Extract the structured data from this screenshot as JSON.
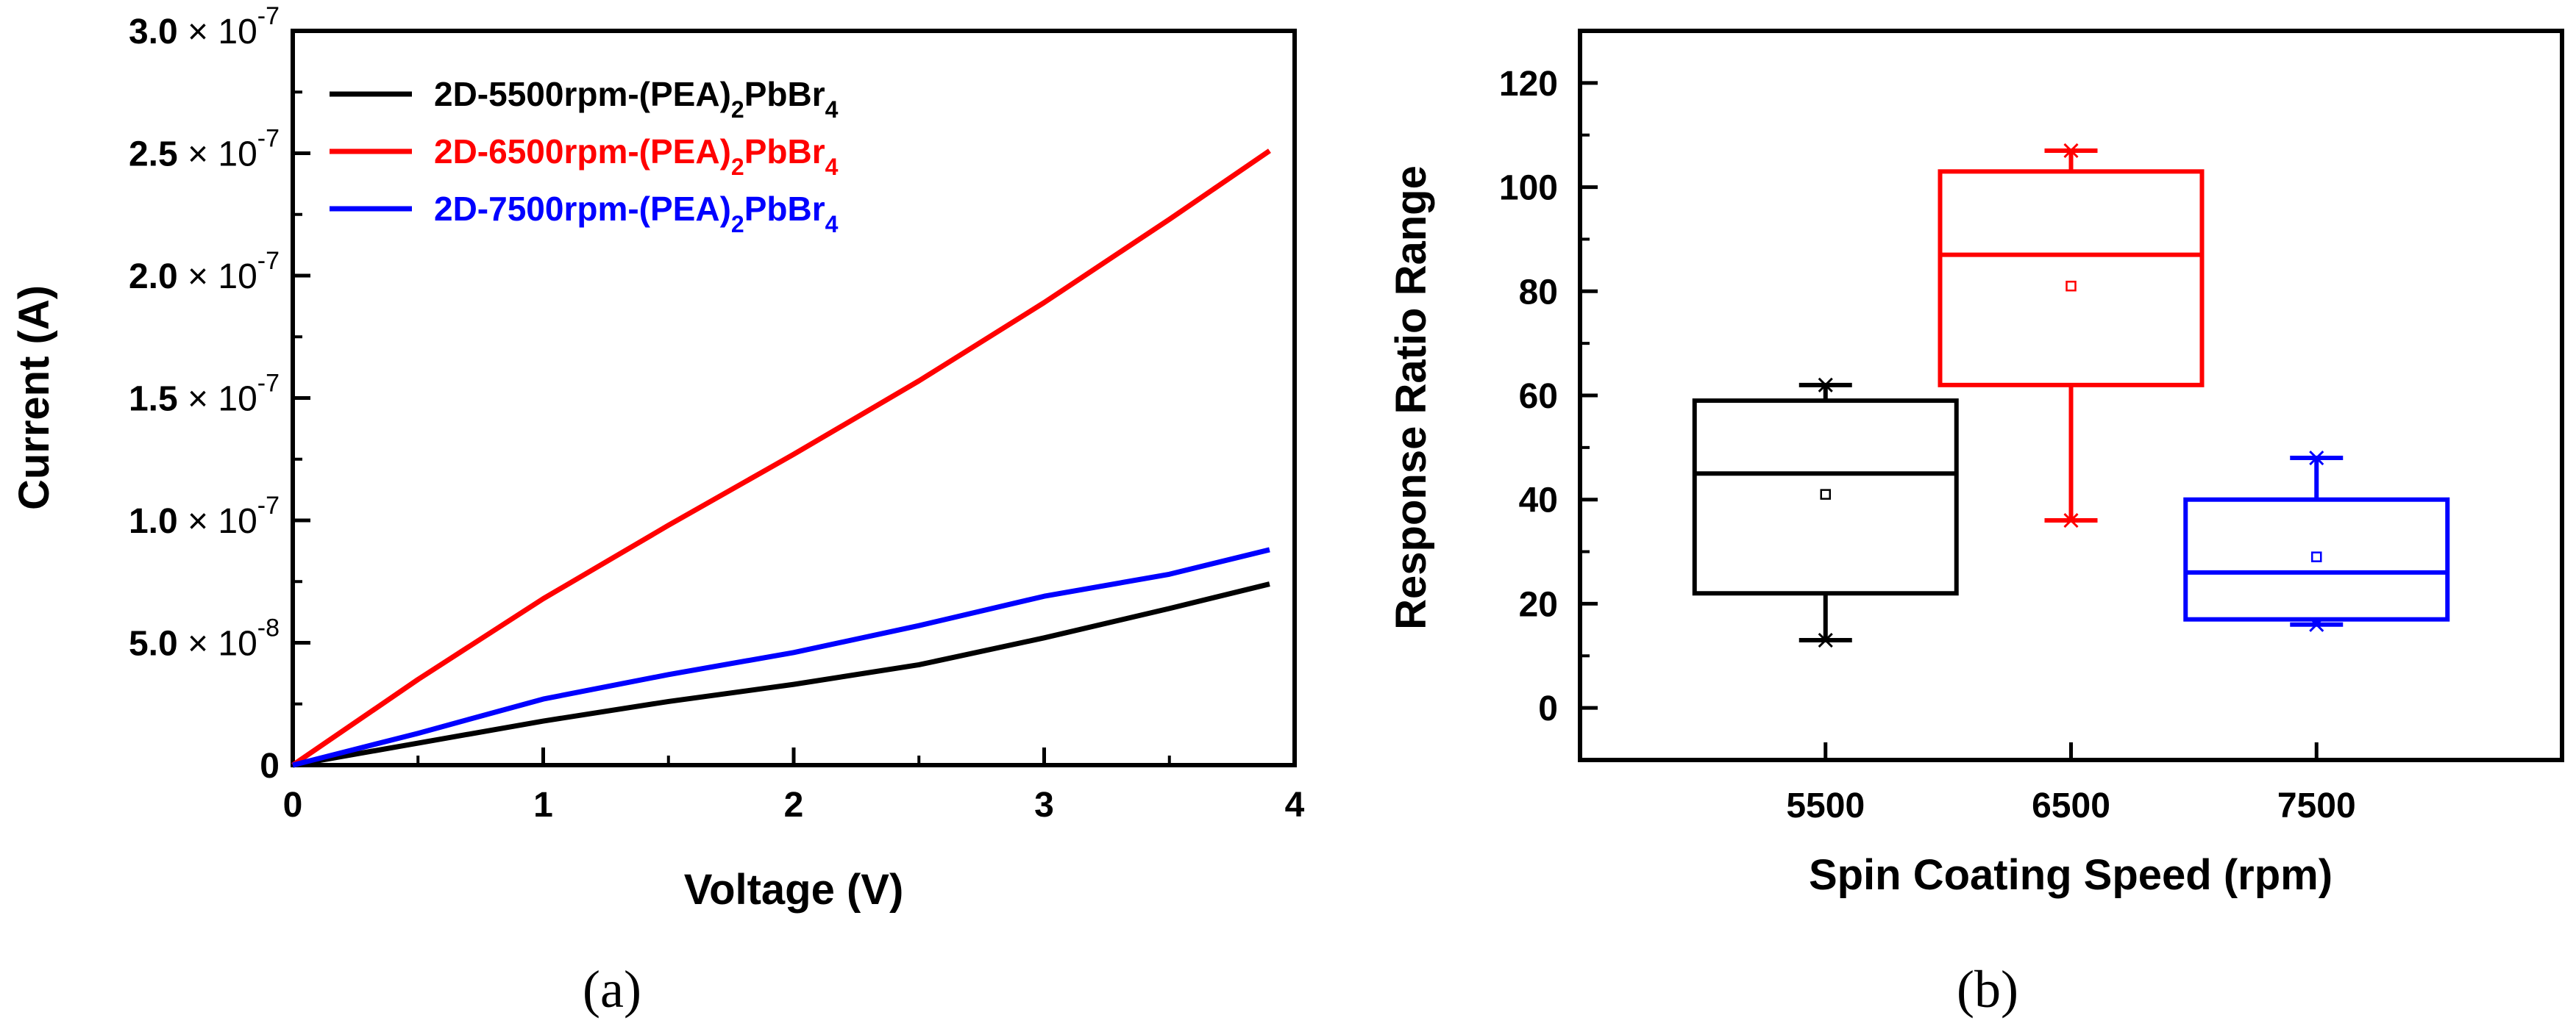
{
  "chart_data": [
    {
      "panel": "(a)",
      "type": "line",
      "xlabel": "Voltage (V)",
      "ylabel": "Current (A)",
      "xlim": [
        0,
        4
      ],
      "ylim": [
        0,
        3e-07
      ],
      "xticks": [
        "0",
        "1",
        "2",
        "3",
        "4"
      ],
      "yticks": [
        {
          "mantissa": "0",
          "exp": ""
        },
        {
          "mantissa": "5.0",
          "exp": "-8"
        },
        {
          "mantissa": "1.0",
          "exp": "-7"
        },
        {
          "mantissa": "1.5",
          "exp": "-7"
        },
        {
          "mantissa": "2.0",
          "exp": "-7"
        },
        {
          "mantissa": "2.5",
          "exp": "-7"
        },
        {
          "mantissa": "3.0",
          "exp": "-7"
        }
      ],
      "legend_position": "top-left",
      "series": [
        {
          "name": "2D-5500rpm-(PEA)2PbBr4",
          "label_pre": "2D-5500rpm-(PEA)",
          "label_sub1": "2",
          "label_mid": "PbBr",
          "label_sub2": "4",
          "color": "#000000",
          "x": [
            0,
            0.5,
            1.0,
            1.5,
            2.0,
            2.5,
            3.0,
            3.5,
            3.9
          ],
          "y": [
            0,
            9e-09,
            1.8e-08,
            2.6e-08,
            3.3e-08,
            4.1e-08,
            5.2e-08,
            6.4e-08,
            7.4e-08
          ]
        },
        {
          "name": "2D-6500rpm-(PEA)2PbBr4",
          "label_pre": "2D-6500rpm-(PEA)",
          "label_sub1": "2",
          "label_mid": "PbBr",
          "label_sub2": "4",
          "color": "#ff0000",
          "x": [
            0,
            0.5,
            1.0,
            1.5,
            2.0,
            2.5,
            3.0,
            3.5,
            3.9
          ],
          "y": [
            0,
            3.5e-08,
            6.8e-08,
            9.8e-08,
            1.27e-07,
            1.57e-07,
            1.89e-07,
            2.23e-07,
            2.51e-07
          ]
        },
        {
          "name": "2D-7500rpm-(PEA)2PbBr4",
          "label_pre": "2D-7500rpm-(PEA)",
          "label_sub1": "2",
          "label_mid": "PbBr",
          "label_sub2": "4",
          "color": "#0000ff",
          "x": [
            0,
            0.5,
            1.0,
            1.5,
            2.0,
            2.5,
            3.0,
            3.5,
            3.9
          ],
          "y": [
            0,
            1.3e-08,
            2.7e-08,
            3.7e-08,
            4.6e-08,
            5.7e-08,
            6.9e-08,
            7.8e-08,
            8.8e-08
          ]
        }
      ]
    },
    {
      "panel": "(b)",
      "type": "box",
      "xlabel": "Spin Coating Speed (rpm)",
      "ylabel": "Response Ratio Range",
      "ylim": [
        -10,
        130
      ],
      "yticks": [
        "0",
        "20",
        "40",
        "60",
        "80",
        "100",
        "120"
      ],
      "categories": [
        "5500",
        "6500",
        "7500"
      ],
      "boxes": [
        {
          "category": "5500",
          "color": "#000000",
          "whisker_low": 13,
          "q1": 22,
          "median": 45,
          "q3": 59,
          "whisker_high": 62,
          "mean": 41,
          "min": 13,
          "max": 62
        },
        {
          "category": "6500",
          "color": "#ff0000",
          "whisker_low": 36,
          "q1": 62,
          "median": 87,
          "q3": 103,
          "whisker_high": 107,
          "mean": 81,
          "min": 36,
          "max": 107
        },
        {
          "category": "7500",
          "color": "#0000ff",
          "whisker_low": 16,
          "q1": 17,
          "median": 26,
          "q3": 40,
          "whisker_high": 48,
          "mean": 29,
          "min": 16,
          "max": 48
        }
      ]
    }
  ]
}
